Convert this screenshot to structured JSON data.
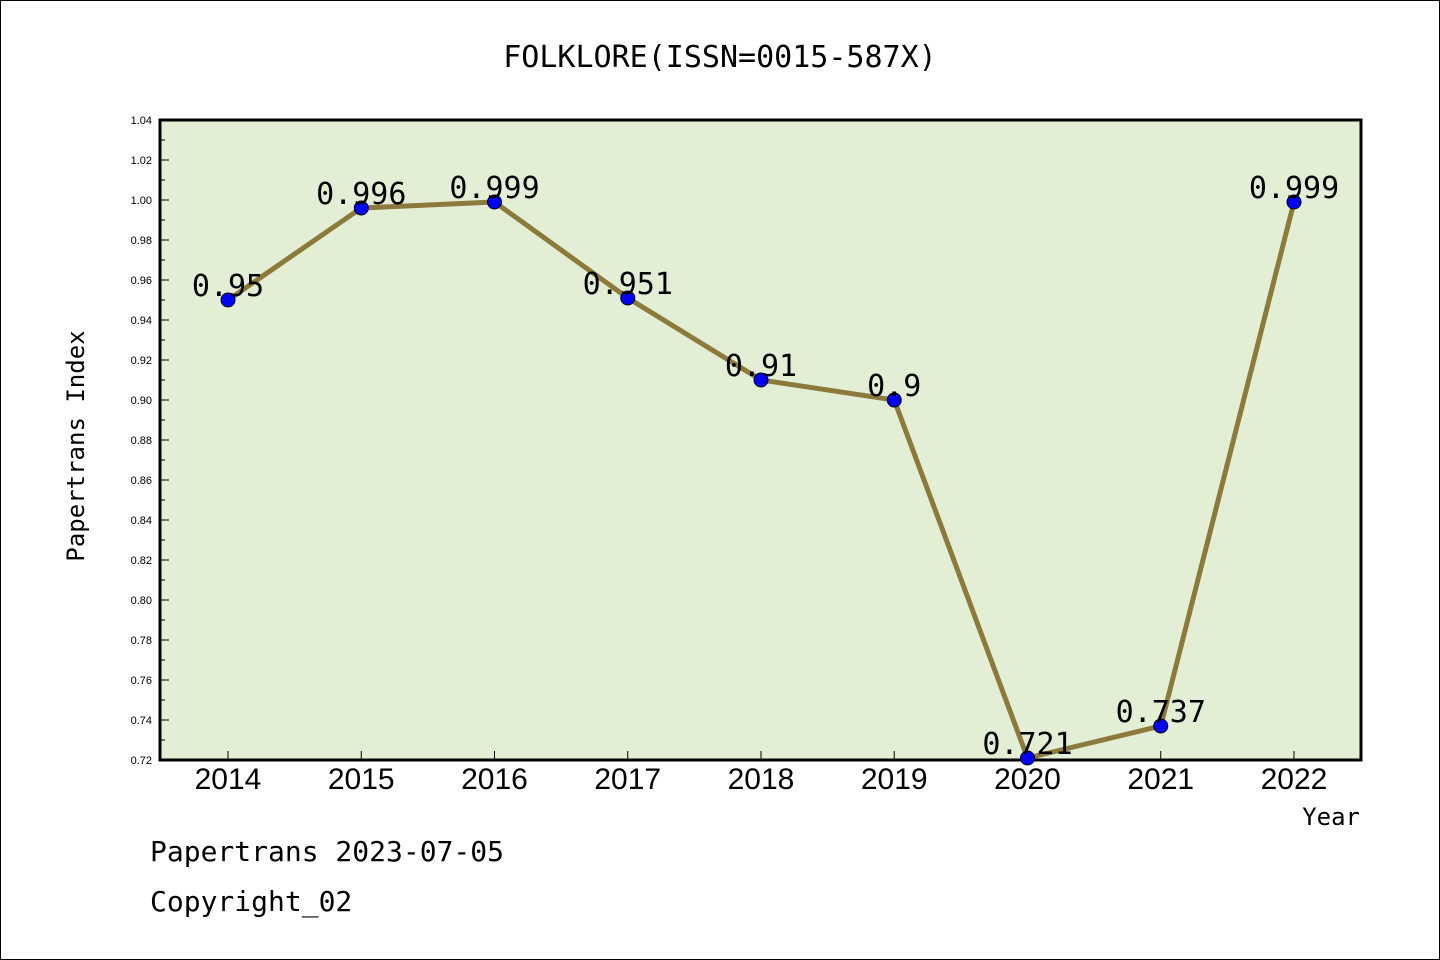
{
  "chart_data": {
    "type": "line",
    "title": "FOLKLORE(ISSN=0015-587X)",
    "xlabel": "Year",
    "ylabel": "Papertrans Index",
    "categories": [
      "2014",
      "2015",
      "2016",
      "2017",
      "2018",
      "2019",
      "2020",
      "2021",
      "2022"
    ],
    "values": [
      0.95,
      0.996,
      0.999,
      0.951,
      0.91,
      0.9,
      0.721,
      0.737,
      0.999
    ],
    "data_labels": [
      "0.95",
      "0.996",
      "0.999",
      "0.951",
      "0.91",
      "0.9",
      "0.721",
      "0.737",
      "0.999"
    ],
    "ylim": [
      0.72,
      1.04
    ],
    "yticks": [
      "0.72",
      "0.74",
      "0.76",
      "0.78",
      "0.80",
      "0.82",
      "0.84",
      "0.86",
      "0.88",
      "0.90",
      "0.92",
      "0.94",
      "0.96",
      "0.98",
      "1.00",
      "1.02",
      "1.04"
    ],
    "grid": false,
    "colors": {
      "plot_background": "#e2efd5",
      "line": "#8b7a3a",
      "marker": "#0000ff"
    }
  },
  "footer": {
    "line1": "Papertrans 2023-07-05",
    "line2": "Copyright_02"
  }
}
